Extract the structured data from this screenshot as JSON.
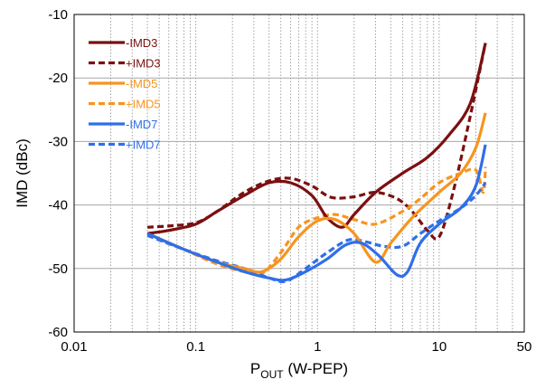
{
  "chart_data": {
    "type": "line",
    "title": "",
    "xlabel": {
      "main": "P",
      "sub": "OUT",
      "suffix": " (W-PEP)"
    },
    "ylabel": "IMD (dBc)",
    "xscale": "log",
    "xlim": [
      0.01,
      50
    ],
    "ylim": [
      -60,
      -10
    ],
    "x_ticks": [
      {
        "value": 0.01,
        "label": "0.01"
      },
      {
        "value": 0.1,
        "label": "0.1"
      },
      {
        "value": 1,
        "label": "1"
      },
      {
        "value": 10,
        "label": "10"
      },
      {
        "value": 50,
        "label": "50"
      }
    ],
    "y_ticks": [
      {
        "value": -10,
        "label": "-10"
      },
      {
        "value": -20,
        "label": "-20"
      },
      {
        "value": -30,
        "label": "-30"
      },
      {
        "value": -40,
        "label": "-40"
      },
      {
        "value": -50,
        "label": "-50"
      },
      {
        "value": -60,
        "label": "-60"
      }
    ],
    "grid": {
      "x_minor": "dotted",
      "y_major": "solid"
    },
    "legend_position": "top-left",
    "series": [
      {
        "name": "-IMD3",
        "color": "#7b1010",
        "dash": "solid",
        "x": [
          0.04,
          0.06,
          0.1,
          0.15,
          0.25,
          0.4,
          0.6,
          0.9,
          1.2,
          1.6,
          2.0,
          3.0,
          5.0,
          8.0,
          12,
          18,
          24
        ],
        "y": [
          -44.5,
          -44,
          -43,
          -41,
          -38.5,
          -36.5,
          -36.5,
          -38.5,
          -42,
          -43.5,
          -41.5,
          -38,
          -35,
          -32.5,
          -29,
          -24,
          -14.5
        ]
      },
      {
        "name": "+IMD3",
        "color": "#7b1010",
        "dash": "dashed",
        "x": [
          0.04,
          0.06,
          0.1,
          0.15,
          0.25,
          0.4,
          0.6,
          0.9,
          1.3,
          2.0,
          3.0,
          4.5,
          6.0,
          8.0,
          10,
          13,
          18,
          24
        ],
        "y": [
          -43.5,
          -43.3,
          -42.8,
          -41,
          -38,
          -36.2,
          -35.8,
          -37,
          -38.8,
          -38.7,
          -38,
          -39,
          -41,
          -44,
          -45,
          -38,
          -26,
          -14.5
        ]
      },
      {
        "name": "-IMD5",
        "color": "#f79420",
        "dash": "solid",
        "x": [
          0.04,
          0.08,
          0.15,
          0.25,
          0.35,
          0.5,
          0.7,
          1.0,
          1.4,
          2.0,
          3.0,
          4.0,
          6.0,
          10,
          15,
          20,
          24
        ],
        "y": [
          -44.5,
          -47,
          -49,
          -50,
          -50.5,
          -48.5,
          -45,
          -42.5,
          -42.3,
          -44.5,
          -49,
          -46,
          -42,
          -38,
          -35,
          -31,
          -25.5
        ]
      },
      {
        "name": "+IMD5",
        "color": "#f79420",
        "dash": "dashed",
        "x": [
          0.04,
          0.08,
          0.15,
          0.25,
          0.35,
          0.5,
          0.7,
          1.0,
          1.4,
          2.0,
          3.0,
          5.0,
          7.0,
          10,
          15,
          20,
          23,
          24
        ],
        "y": [
          -44.5,
          -47,
          -49.3,
          -50.5,
          -50.8,
          -47.5,
          -43.5,
          -42,
          -41.5,
          -42.3,
          -43,
          -41,
          -39,
          -36.5,
          -35,
          -34.5,
          -38,
          -34
        ]
      },
      {
        "name": "-IMD7",
        "color": "#2f6fe8",
        "dash": "solid",
        "x": [
          0.04,
          0.08,
          0.15,
          0.25,
          0.4,
          0.55,
          0.8,
          1.2,
          1.7,
          2.3,
          3.2,
          4.5,
          5.5,
          7.0,
          10,
          15,
          20,
          24
        ],
        "y": [
          -44.5,
          -47,
          -49,
          -50.5,
          -51.5,
          -51.8,
          -50.5,
          -48.5,
          -46.3,
          -46,
          -48,
          -51,
          -50.5,
          -46,
          -43,
          -40.5,
          -37,
          -30.5
        ]
      },
      {
        "name": "+IMD7",
        "color": "#2f6fe8",
        "dash": "dashed",
        "x": [
          0.04,
          0.08,
          0.15,
          0.25,
          0.4,
          0.55,
          0.8,
          1.2,
          1.8,
          2.5,
          3.5,
          5.0,
          7.0,
          10,
          15,
          20,
          24
        ],
        "y": [
          -44.8,
          -47,
          -48.8,
          -50,
          -51.5,
          -52,
          -50,
          -47.5,
          -45.5,
          -45.8,
          -46.5,
          -46.5,
          -44.5,
          -42.5,
          -40.5,
          -38.5,
          -36.5
        ]
      }
    ]
  }
}
